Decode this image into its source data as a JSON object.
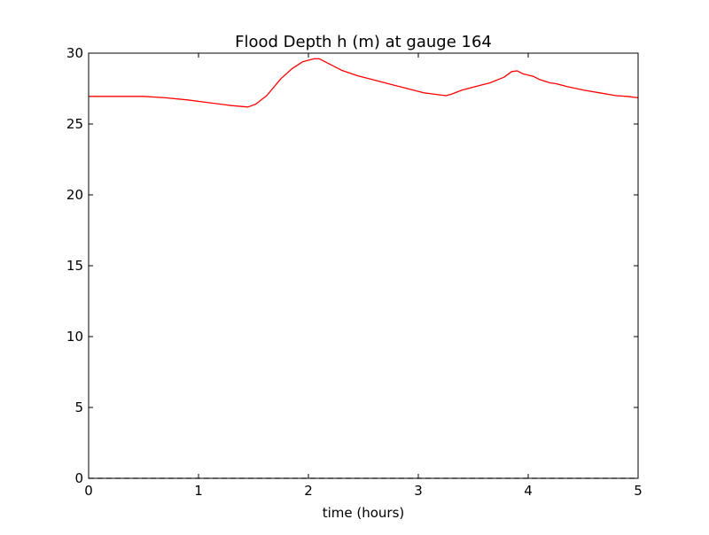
{
  "chart_data": {
    "type": "line",
    "title": "Flood Depth h (m) at gauge 164",
    "xlabel": "time (hours)",
    "ylabel": "",
    "xlim": [
      0,
      5
    ],
    "ylim": [
      0,
      30
    ],
    "xticks": [
      0,
      1,
      2,
      3,
      4,
      5
    ],
    "yticks": [
      0,
      5,
      10,
      15,
      20,
      25,
      30
    ],
    "grid": false,
    "series": [
      {
        "color": "#ff0000",
        "line_style": "solid",
        "x": [
          0,
          0.25,
          0.5,
          0.7,
          0.9,
          1.1,
          1.3,
          1.45,
          1.52,
          1.62,
          1.75,
          1.85,
          1.95,
          2.05,
          2.1,
          2.2,
          2.3,
          2.45,
          2.6,
          2.75,
          2.9,
          3.05,
          3.15,
          3.25,
          3.3,
          3.4,
          3.55,
          3.65,
          3.78,
          3.85,
          3.9,
          3.95,
          4.05,
          4.1,
          4.2,
          4.25,
          4.35,
          4.5,
          4.65,
          4.8,
          4.9,
          5.0
        ],
        "y": [
          26.95,
          26.95,
          26.95,
          26.85,
          26.7,
          26.5,
          26.3,
          26.2,
          26.4,
          27.0,
          28.2,
          28.9,
          29.4,
          29.6,
          29.6,
          29.2,
          28.8,
          28.4,
          28.1,
          27.8,
          27.5,
          27.2,
          27.1,
          27.0,
          27.1,
          27.4,
          27.7,
          27.9,
          28.3,
          28.7,
          28.75,
          28.55,
          28.35,
          28.15,
          27.9,
          27.85,
          27.65,
          27.4,
          27.2,
          27.0,
          26.95,
          26.85
        ]
      },
      {
        "color": "#000000",
        "line_style": "dashed",
        "x": [
          0,
          5
        ],
        "y": [
          0,
          0
        ]
      }
    ]
  }
}
